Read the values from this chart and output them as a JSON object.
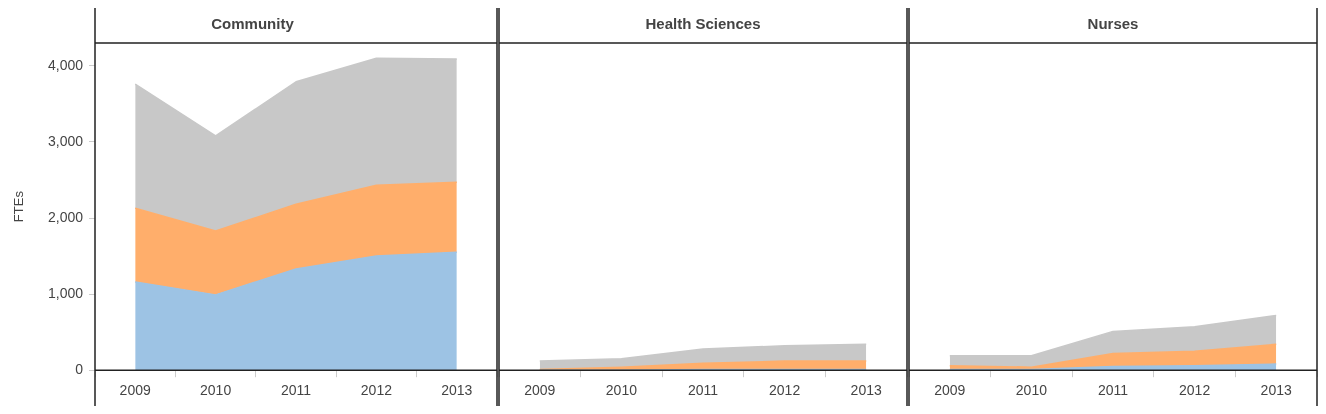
{
  "chart_data": [
    {
      "type": "area",
      "title": "Community",
      "ylabel": "FTEs",
      "categories": [
        "2009",
        "2010",
        "2011",
        "2012",
        "2013"
      ],
      "stacked": true,
      "ylim": [
        0,
        4300
      ],
      "yticks": [
        0,
        {
          "value": 1000,
          "label": "1,000"
        },
        {
          "value": 2000,
          "label": "2,000"
        },
        {
          "value": 3000,
          "label": "3,000"
        },
        {
          "value": 4000,
          "label": "4,000"
        }
      ],
      "series": [
        {
          "color": "#9dc3e4",
          "values": [
            1160,
            990,
            1330,
            1500,
            1550
          ]
        },
        {
          "color": "#ffae6b",
          "values": [
            970,
            840,
            850,
            930,
            920
          ]
        },
        {
          "color": "#c8c8c8",
          "values": [
            1630,
            1250,
            1610,
            1670,
            1620
          ]
        }
      ]
    },
    {
      "type": "area",
      "title": "Health Sciences",
      "categories": [
        "2009",
        "2010",
        "2011",
        "2012",
        "2013"
      ],
      "stacked": true,
      "ylim": [
        0,
        4300
      ],
      "tick_labels": "x",
      "series": [
        {
          "color": "#9dc3e4",
          "values": [
            0,
            0,
            10,
            10,
            10
          ]
        },
        {
          "color": "#ffae6b",
          "values": [
            10,
            40,
            80,
            110,
            110
          ]
        },
        {
          "color": "#c8c8c8",
          "values": [
            110,
            110,
            190,
            200,
            220
          ]
        }
      ]
    },
    {
      "type": "area",
      "title": "Nurses",
      "categories": [
        "2009",
        "2010",
        "2011",
        "2012",
        "2013"
      ],
      "stacked": true,
      "ylim": [
        0,
        4300
      ],
      "tick_labels": "x",
      "series": [
        {
          "color": "#9dc3e4",
          "values": [
            10,
            10,
            50,
            60,
            80
          ]
        },
        {
          "color": "#ffae6b",
          "values": [
            50,
            30,
            170,
            190,
            260
          ]
        },
        {
          "color": "#c8c8c8",
          "values": [
            130,
            150,
            290,
            320,
            380
          ]
        }
      ]
    }
  ]
}
